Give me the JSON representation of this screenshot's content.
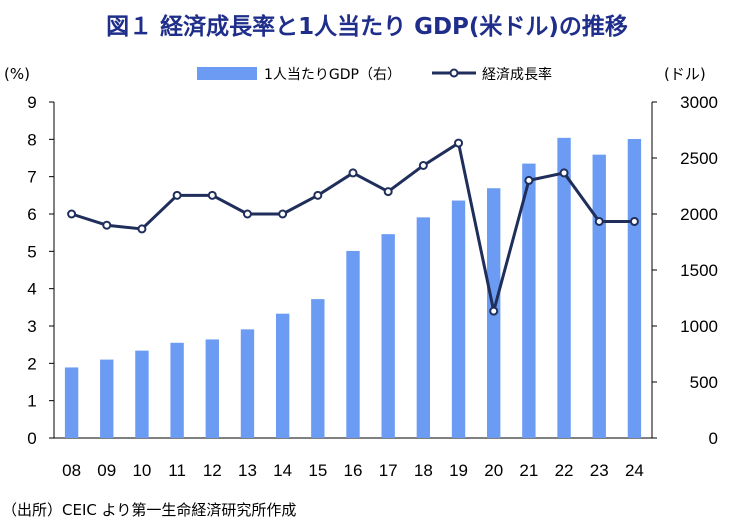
{
  "title": "図１ 経済成長率と1人当たり GDP(米ドル)の推移",
  "source": "（出所）CEIC より第一生命経済研究所作成",
  "colors": {
    "title": "#1f2e8a",
    "bar": "#6b9bf2",
    "line": "#1f2e5a",
    "marker_fill": "#ffffff"
  },
  "chart_data": {
    "type": "bar+line",
    "categories": [
      "08",
      "09",
      "10",
      "11",
      "12",
      "13",
      "14",
      "15",
      "16",
      "17",
      "18",
      "19",
      "20",
      "21",
      "22",
      "23",
      "24"
    ],
    "left_axis": {
      "unit": "(%)",
      "min": 0,
      "max": 9,
      "ticks": [
        "0",
        "1",
        "2",
        "3",
        "4",
        "5",
        "6",
        "7",
        "8",
        "9"
      ]
    },
    "right_axis": {
      "unit": "(ドル)",
      "min": 0,
      "max": 3000,
      "ticks": [
        "0",
        "500",
        "1000",
        "1500",
        "2000",
        "2500",
        "3000"
      ]
    },
    "grid": false,
    "legend_position": "top",
    "series": [
      {
        "name": "1人当たりGDP（右）",
        "type": "bar",
        "axis": "right",
        "values": [
          630,
          700,
          780,
          850,
          880,
          970,
          1110,
          1240,
          1670,
          1820,
          1970,
          2120,
          2230,
          2450,
          2680,
          2530,
          2670
        ]
      },
      {
        "name": "経済成長率",
        "type": "line",
        "axis": "left",
        "values": [
          6.0,
          5.7,
          5.6,
          6.5,
          6.5,
          6.0,
          6.0,
          6.5,
          7.1,
          6.6,
          7.3,
          7.9,
          3.4,
          6.9,
          7.1,
          5.8,
          5.8
        ]
      }
    ]
  }
}
